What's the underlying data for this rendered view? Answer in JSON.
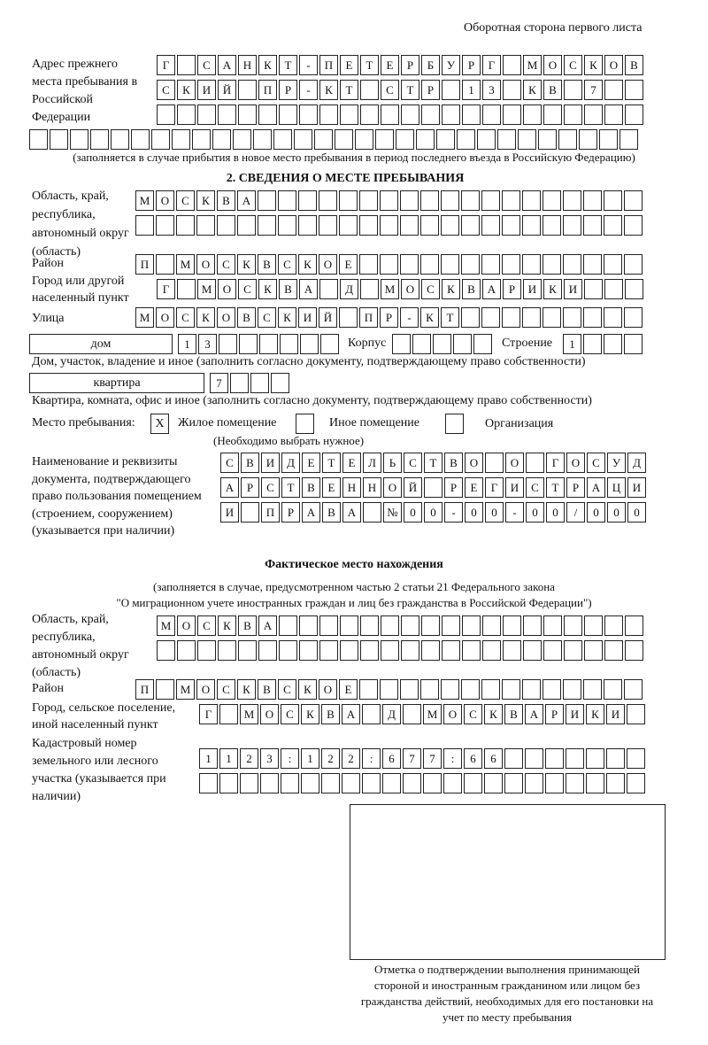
{
  "header": "Оборотная сторона первого листа",
  "prev_address": {
    "label": "Адрес прежнего места пребывания в Российской Федерации",
    "rows": [
      "Г САНКТ-ПЕТЕРБУРГ МОСКОВ",
      "СКИЙ ПР-КТ СТР 13 КВ 7",
      "",
      ""
    ],
    "note": "(заполняется в случае прибытия в новое место пребывания в период последнего въезда в Российскую Федерацию)"
  },
  "section2": {
    "title": "2. СВЕДЕНИЯ О МЕСТЕ ПРЕБЫВАНИЯ",
    "region_label": "Область, край, республика, автономный округ (область)",
    "region_rows": [
      "МОСКВА",
      ""
    ],
    "district_label": "Район",
    "district": "П МОСКВСКОЕ",
    "city_label": "Город или другой населенный пункт",
    "city": "Г МОСКВА Д МОСКВАРИКИ",
    "street_label": "Улица",
    "street": "МОСКОВСКИЙ ПР-КТ",
    "house_type": "дом",
    "house": "13",
    "korpus_label": "Корпус",
    "korpus": "",
    "building_label": "Строение",
    "building": "1",
    "house_note": "Дом, участок, владение и иное (заполнить согласно документу, подтверждающему право собственности)",
    "apt_type": "квартира",
    "apt": "7",
    "apt_note": "Квартира, комната, офис и иное (заполнить согласно документу, подтверждающему право собственности)",
    "stay_label": "Место пребывания:",
    "options": [
      {
        "label": "Жилое помещение",
        "mark": "X"
      },
      {
        "label": "Иное помещение",
        "mark": ""
      },
      {
        "label": "Организация",
        "mark": ""
      }
    ],
    "choose_note": "(Необходимо выбрать нужное)",
    "doc_label": "Наименование и реквизиты документа, подтверждающего право пользования помещением (строением, сооружением) (указывается при наличии)",
    "doc_rows": [
      "СВИДЕТЕЛЬСТВО О ГОСУД",
      "АРСТВЕННОЙ РЕГИСТРАЦИ",
      "И ПРАВА №00-00-00/000"
    ]
  },
  "actual": {
    "title": "Фактическое место нахождения",
    "note1": "(заполняется в случае, предусмотренном частью 2 статьи 21 Федерального закона",
    "note2": "\"О миграционном учете иностранных граждан и лиц без гражданства в Российской Федерации\")",
    "region_label": "Область, край, республика, автономный округ (область)",
    "region_rows": [
      "МОСКВА",
      ""
    ],
    "district_label": "Район",
    "district": "П МОСКВСКОЕ",
    "city_label": "Город, сельское поселение, иной населенный пункт",
    "city": "Г МОСКВА Д МОСКВАРИКИ",
    "cadastral_label": "Кадастровый номер земельного или лесного участка (указывается при наличии)",
    "cadastral_rows": [
      "1123:122:677:66",
      ""
    ]
  },
  "stamp_caption": "Отметка о подтверждении выполнения принимающей стороной и иностранным гражданином или лицом без гражданства действий, необходимых для его постановки на учет по месту пребывания"
}
